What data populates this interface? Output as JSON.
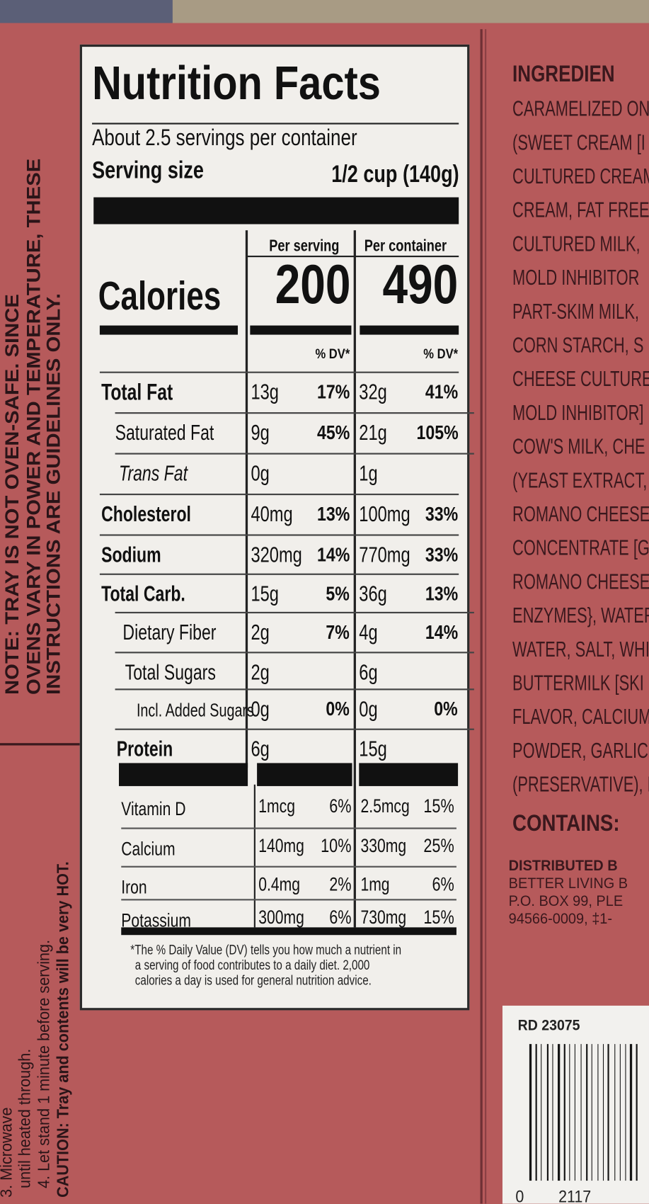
{
  "label": {
    "title": "Nutrition Facts",
    "servings": "About 2.5 servings per container",
    "serving_size_label": "Serving size",
    "serving_size": "1/2 cup (140g)",
    "column_headers": [
      "Per serving",
      "Per container"
    ],
    "calories_label": "Calories",
    "calories": [
      "200",
      "490"
    ],
    "dv_headers": [
      "% DV*",
      "% DV*"
    ],
    "nutrients": [
      {
        "name": "Total Fat",
        "serving": "13g",
        "serving_dv": "17%",
        "container": "32g",
        "container_dv": "41%"
      },
      {
        "name": "Saturated Fat",
        "serving": "9g",
        "serving_dv": "45%",
        "container": "21g",
        "container_dv": "105%"
      },
      {
        "name": "Trans Fat",
        "serving": "0g",
        "container": "1g"
      },
      {
        "name": "Cholesterol",
        "serving": "40mg",
        "serving_dv": "13%",
        "container": "100mg",
        "container_dv": "33%"
      },
      {
        "name": "Sodium",
        "serving": "320mg",
        "serving_dv": "14%",
        "container": "770mg",
        "container_dv": "33%"
      },
      {
        "name": "Total Carb.",
        "serving": "15g",
        "serving_dv": "5%",
        "container": "36g",
        "container_dv": "13%"
      },
      {
        "name": "Dietary Fiber",
        "serving": "2g",
        "serving_dv": "7%",
        "container": "4g",
        "container_dv": "14%"
      },
      {
        "name": "Total Sugars",
        "serving": "2g",
        "container": "6g"
      },
      {
        "name": "Incl. Added Sugars",
        "serving": "0g",
        "serving_dv": "0%",
        "container": "0g",
        "container_dv": "0%"
      },
      {
        "name": "Protein",
        "serving": "6g",
        "container": "15g"
      }
    ],
    "vitamins": [
      {
        "name": "Vitamin D",
        "serving": "1mcg",
        "serving_dv": "6%",
        "container": "2.5mcg",
        "container_dv": "15%"
      },
      {
        "name": "Calcium",
        "serving": "140mg",
        "serving_dv": "10%",
        "container": "330mg",
        "container_dv": "25%"
      },
      {
        "name": "Iron",
        "serving": "0.4mg",
        "serving_dv": "2%",
        "container": "1mg",
        "container_dv": "6%"
      },
      {
        "name": "Potassium",
        "serving": "300mg",
        "serving_dv": "6%",
        "container": "730mg",
        "container_dv": "15%"
      }
    ],
    "footnote": [
      "*The % Daily Value (DV) tells you how much a nutrient in",
      "a serving of food contributes to a daily diet. 2,000",
      "calories a day is used for general nutrition advice."
    ]
  },
  "side_note": [
    "NOTE: TRAY IS NOT OVEN-SAFE. SINCE",
    "OVENS VARY IN POWER AND TEMPERATURE, THESE",
    "INSTRUCTIONS ARE GUIDELINES ONLY."
  ],
  "instructions": [
    "3. Microwave",
    "until heated through.",
    "4. Let stand 1 minute before serving.",
    "CAUTION: Tray and contents will be very HOT."
  ],
  "ingredients": {
    "title": "INGREDIEN",
    "lines": [
      "CARAMELIZED ON",
      "(SWEET CREAM [I",
      "CULTURED CREAM",
      "CREAM, FAT FREE",
      "CULTURED MILK,",
      "MOLD INHIBITOR",
      "PART-SKIM MILK,",
      "CORN STARCH, S",
      "CHEESE CULTURE",
      "MOLD INHIBITOR]",
      "COW'S MILK, CHE",
      "(YEAST EXTRACT,",
      "ROMANO CHEESE",
      "CONCENTRATE [G",
      "ROMANO CHEESE",
      "ENZYMES}, WATER",
      "WATER, SALT, WHI",
      "BUTTERMILK [SKI",
      "FLAVOR, CALCIUM",
      "POWDER, GARLIC",
      "(PRESERVATIVE), P"
    ]
  },
  "contains": "CONTAINS:",
  "distributor": [
    "DISTRIBUTED B",
    "BETTER LIVING B",
    "P.O. BOX 99, PLE",
    "94566-0009, ‡1-"
  ],
  "code": "RD 23075",
  "barcode_digits": [
    "0",
    "2117"
  ]
}
